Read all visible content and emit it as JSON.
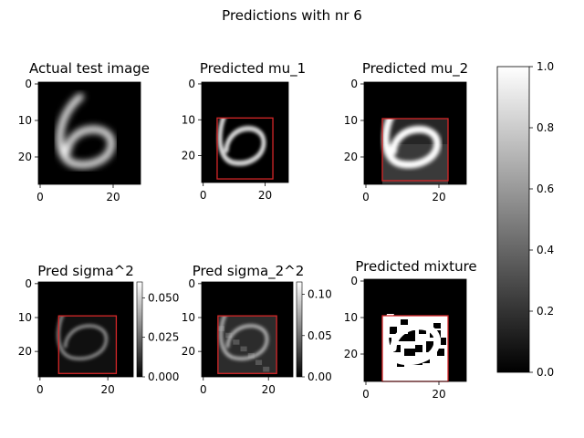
{
  "figure": {
    "title": "Predictions with nr 6"
  },
  "colors": {
    "background": "#ffffff",
    "box": "#d62728",
    "cmap_low": "#000000",
    "cmap_high": "#ffffff"
  },
  "chart_data": [
    {
      "type": "heatmap",
      "title": "Actual test image",
      "image_size": 28,
      "xticks": [
        "0",
        "20"
      ],
      "yticks": [
        "0",
        "10",
        "20"
      ],
      "box": null,
      "colorbar": null
    },
    {
      "type": "heatmap",
      "title": "Predicted mu_1",
      "image_size": 28,
      "xticks": [
        "0",
        "20"
      ],
      "yticks": [
        "0",
        "10",
        "20"
      ],
      "box": {
        "x0": 5,
        "x1": 23,
        "y0": 10,
        "y1": 27
      },
      "colorbar": null
    },
    {
      "type": "heatmap",
      "title": "Predicted mu_2",
      "image_size": 28,
      "xticks": [
        "0",
        "20"
      ],
      "yticks": [
        "0",
        "10",
        "20"
      ],
      "box": {
        "x0": 5,
        "x1": 23,
        "y0": 10,
        "y1": 27
      },
      "colorbar": null
    },
    {
      "type": "heatmap",
      "title": "Pred sigma^2",
      "image_size": 28,
      "xticks": [
        "0",
        "20"
      ],
      "yticks": [
        "0",
        "10",
        "20"
      ],
      "box": {
        "x0": 6,
        "x1": 23,
        "y0": 10,
        "y1": 27
      },
      "colorbar": {
        "min": 0,
        "max": 0.06,
        "ticks": [
          "0.000",
          "0.025",
          "0.050"
        ],
        "tick_values": [
          0,
          0.025,
          0.05
        ]
      }
    },
    {
      "type": "heatmap",
      "title": "Pred sigma_2^2",
      "image_size": 28,
      "xticks": [
        "0",
        "20"
      ],
      "yticks": [
        "0",
        "10",
        "20"
      ],
      "box": {
        "x0": 5,
        "x1": 23,
        "y0": 10,
        "y1": 27
      },
      "colorbar": {
        "min": 0,
        "max": 0.115,
        "ticks": [
          "0.00",
          "0.05",
          "0.10"
        ],
        "tick_values": [
          0,
          0.05,
          0.1
        ]
      }
    },
    {
      "type": "heatmap",
      "title": "Predicted mixture",
      "image_size": 28,
      "xticks": [
        "0",
        "20"
      ],
      "yticks": [
        "0",
        "10",
        "20"
      ],
      "box": {
        "x0": 5,
        "x1": 23,
        "y0": 10,
        "y1": 28
      },
      "colorbar": null
    }
  ],
  "colorbar": {
    "min": 0,
    "max": 1,
    "ticks": [
      "0.0",
      "0.2",
      "0.4",
      "0.6",
      "0.8",
      "1.0"
    ],
    "tick_values": [
      0,
      0.2,
      0.4,
      0.6,
      0.8,
      1.0
    ]
  }
}
